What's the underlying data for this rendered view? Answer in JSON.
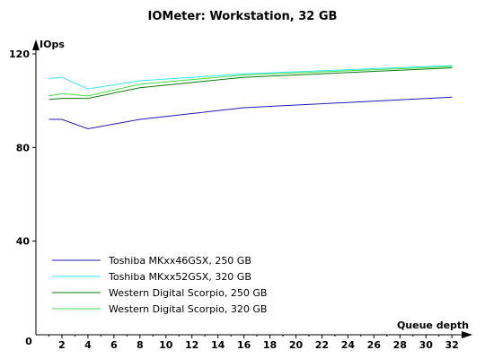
{
  "chart_data": {
    "type": "line",
    "title": "IOMeter: Workstation, 32 GB",
    "ylabel": "IOps",
    "xlabel": "Queue depth",
    "origin_label": "0",
    "x": [
      1,
      2,
      4,
      8,
      16,
      32
    ],
    "xticks": [
      "2",
      "4",
      "6",
      "8",
      "10",
      "12",
      "14",
      "16",
      "18",
      "20",
      "22",
      "24",
      "26",
      "28",
      "30",
      "32"
    ],
    "yticks": [
      "40",
      "80",
      "120"
    ],
    "xlim": [
      0,
      33.3
    ],
    "ylim": [
      0,
      120
    ],
    "grid": false,
    "legend_position": "bottom-left",
    "series": [
      {
        "name": "Toshiba MKxx46GSX, 250 GB",
        "color": "#1c1cb4",
        "values": [
          92.0,
          92.0,
          88.0,
          92.0,
          97.0,
          101.5
        ]
      },
      {
        "name": "Toshiba MKxx52GSX, 320 GB",
        "color": "#33e6f5",
        "values": [
          109.5,
          110.0,
          105.0,
          108.5,
          111.5,
          115.0
        ]
      },
      {
        "name": "Western Digital Scorpio, 250 GB",
        "color": "#0c7a0c",
        "values": [
          100.5,
          101.0,
          101.0,
          105.5,
          110.0,
          114.0
        ]
      },
      {
        "name": "Western Digital Scorpio, 320 GB",
        "color": "#44dd44",
        "values": [
          102.0,
          103.0,
          102.0,
          107.0,
          111.0,
          114.5
        ]
      }
    ]
  }
}
